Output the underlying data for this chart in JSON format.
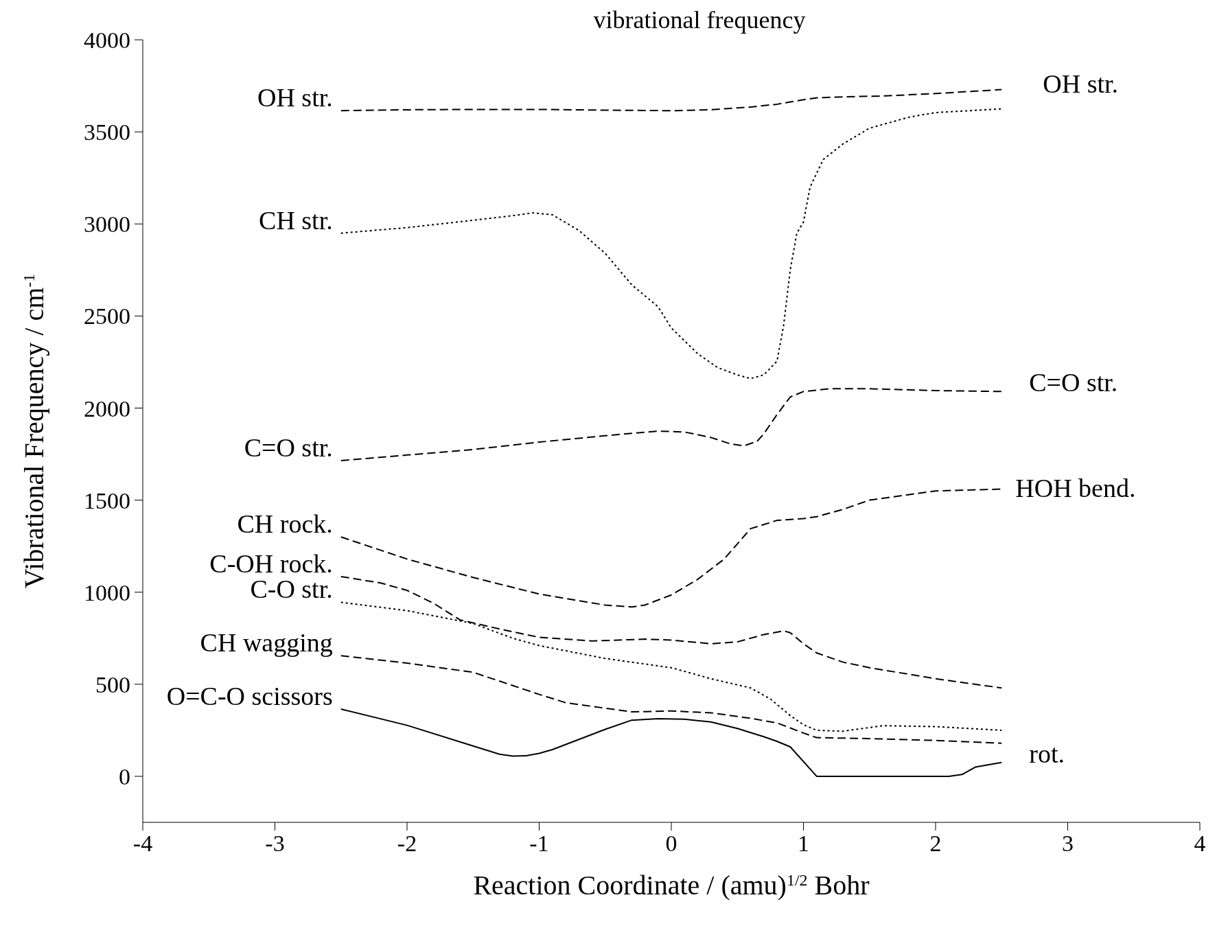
{
  "chart_data": {
    "type": "line",
    "title": "vibrational frequency",
    "xlabel": "Reaction Coordinate / (amu)$^{1/2}$ Bohr",
    "ylabel": "Vibrational Frequency / cm$^{-1}$",
    "xlim": [
      -4,
      4
    ],
    "xticks": [
      -4,
      -3,
      -2,
      -1,
      0,
      1,
      2,
      3,
      4
    ],
    "ylim": [
      -250,
      4000
    ],
    "yticks": [
      0,
      500,
      1000,
      1500,
      2000,
      2500,
      3000,
      3500,
      4000
    ],
    "grid": false,
    "legend": false,
    "marker": "none",
    "annotations": [
      "OH str.",
      "C=O str.",
      "HOH bend.",
      "rot."
    ],
    "series": [
      {
        "name": "OH str.",
        "color": "#000000",
        "line_style": "dashed",
        "x": [
          -2.5,
          -2,
          -1.5,
          -1,
          -0.5,
          0,
          0.3,
          0.6,
          0.8,
          1.0,
          1.1,
          1.3,
          1.6,
          2.0,
          2.5
        ],
        "values": [
          3615,
          3620,
          3622,
          3622,
          3618,
          3615,
          3620,
          3635,
          3650,
          3675,
          3685,
          3690,
          3695,
          3708,
          3730
        ]
      },
      {
        "name": "CH str.",
        "color": "#000000",
        "line_style": "dotted",
        "x": [
          -2.5,
          -2,
          -1.5,
          -1.2,
          -1.05,
          -0.9,
          -0.7,
          -0.5,
          -0.3,
          -0.1,
          0,
          0.2,
          0.35,
          0.5,
          0.6,
          0.7,
          0.8,
          0.85,
          0.9,
          0.95,
          1.0,
          1.05,
          1.15,
          1.3,
          1.5,
          1.8,
          2.0,
          2.5
        ],
        "values": [
          2950,
          2980,
          3020,
          3045,
          3060,
          3050,
          2965,
          2840,
          2670,
          2550,
          2435,
          2295,
          2220,
          2180,
          2160,
          2180,
          2255,
          2450,
          2750,
          2950,
          3010,
          3200,
          3350,
          3435,
          3520,
          3580,
          3605,
          3625
        ]
      },
      {
        "name": "C=O str.",
        "color": "#000000",
        "line_style": "dashed",
        "x": [
          -2.5,
          -2,
          -1.5,
          -1,
          -0.5,
          -0.1,
          0.1,
          0.3,
          0.45,
          0.55,
          0.65,
          0.7,
          0.8,
          0.9,
          1.0,
          1.2,
          1.5,
          2.0,
          2.5
        ],
        "values": [
          1715,
          1745,
          1775,
          1815,
          1850,
          1875,
          1870,
          1840,
          1805,
          1795,
          1820,
          1860,
          1965,
          2060,
          2090,
          2105,
          2105,
          2095,
          2090
        ]
      },
      {
        "name": "CH rock.",
        "color": "#000000",
        "line_style": "dashed",
        "x": [
          -2.5,
          -2,
          -1.5,
          -1,
          -0.5,
          -0.3,
          -0.2,
          0,
          0.2,
          0.4,
          0.6,
          0.8,
          1.0,
          1.1,
          1.3,
          1.5,
          2.0,
          2.5
        ],
        "values": [
          1300,
          1180,
          1080,
          990,
          930,
          920,
          930,
          985,
          1070,
          1180,
          1345,
          1390,
          1400,
          1410,
          1450,
          1500,
          1550,
          1560
        ]
      },
      {
        "name": "C-OH rock.",
        "color": "#000000",
        "line_style": "dashed",
        "x": [
          -2.5,
          -2.2,
          -2,
          -1.8,
          -1.6,
          -1.3,
          -1,
          -0.6,
          -0.2,
          0,
          0.3,
          0.5,
          0.7,
          0.85,
          0.9,
          1.0,
          1.1,
          1.3,
          1.5,
          2.0,
          2.5
        ],
        "values": [
          1085,
          1050,
          1010,
          940,
          850,
          800,
          755,
          735,
          745,
          740,
          720,
          730,
          770,
          790,
          780,
          720,
          670,
          620,
          590,
          530,
          480
        ]
      },
      {
        "name": "C-O str.",
        "color": "#000000",
        "line_style": "dotted",
        "x": [
          -2.5,
          -2,
          -1.5,
          -1.2,
          -1,
          -0.5,
          0,
          0.3,
          0.6,
          0.75,
          0.9,
          1.0,
          1.1,
          1.3,
          1.6,
          2.0,
          2.5
        ],
        "values": [
          945,
          900,
          830,
          750,
          710,
          640,
          590,
          530,
          480,
          420,
          330,
          280,
          250,
          245,
          275,
          270,
          250
        ]
      },
      {
        "name": "CH wagging",
        "color": "#000000",
        "line_style": "dashed",
        "x": [
          -2.5,
          -2,
          -1.5,
          -1,
          -0.8,
          -0.5,
          -0.3,
          0,
          0.3,
          0.6,
          0.8,
          1.0,
          1.1,
          1.5,
          2.0,
          2.5
        ],
        "values": [
          655,
          615,
          565,
          445,
          400,
          370,
          350,
          355,
          345,
          315,
          290,
          235,
          210,
          205,
          195,
          180
        ]
      },
      {
        "name": "O=C-O scissors",
        "color": "#000000",
        "line_style": "solid",
        "x": [
          -2.5,
          -2,
          -1.5,
          -1.3,
          -1.2,
          -1.1,
          -1,
          -0.9,
          -0.7,
          -0.5,
          -0.3,
          -0.1,
          0.1,
          0.3,
          0.5,
          0.7,
          0.8,
          0.9,
          1.1,
          2.1,
          2.2,
          2.3,
          2.5
        ],
        "values": [
          365,
          277,
          165,
          120,
          110,
          112,
          125,
          145,
          200,
          255,
          305,
          313,
          310,
          295,
          260,
          215,
          190,
          160,
          0,
          0,
          10,
          50,
          75
        ]
      }
    ]
  }
}
